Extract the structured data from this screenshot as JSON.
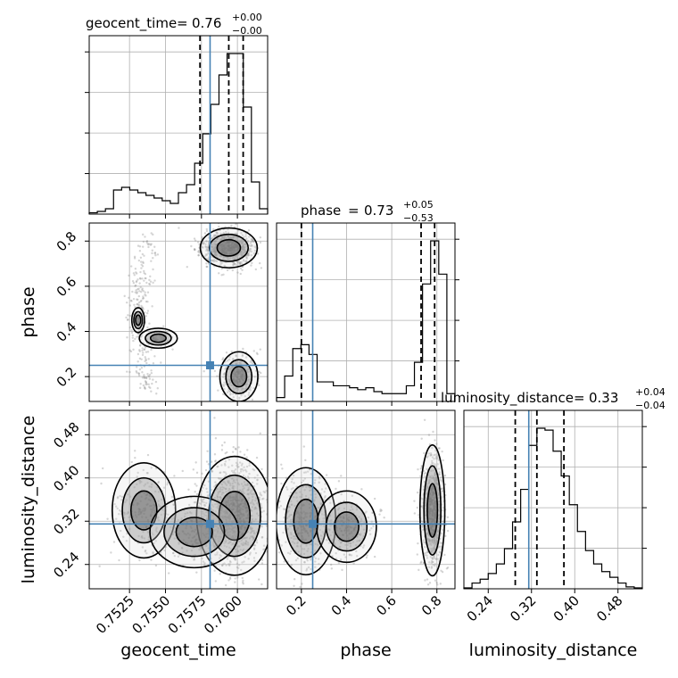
{
  "chart_data": {
    "type": "corner",
    "parameters": [
      "geocent_time",
      "phase",
      "luminosity_distance"
    ],
    "truths": {
      "geocent_time": 0.7581,
      "phase": 0.25,
      "luminosity_distance": 0.315
    },
    "titles": [
      {
        "name": "geocent_time",
        "value": "0.76",
        "plus": "+0.00",
        "minus": "−0.00"
      },
      {
        "name": "phase",
        "value": "0.73",
        "plus": "+0.05",
        "minus": "−0.53"
      },
      {
        "name": "luminosity_distance",
        "value": "0.33",
        "plus": "+0.04",
        "minus": "−0.04"
      }
    ],
    "ranges": {
      "geocent_time": [
        0.7497,
        0.7621
      ],
      "phase": [
        0.09,
        0.88
      ],
      "luminosity_distance": [
        0.195,
        0.525
      ]
    },
    "ticks": {
      "geocent_time": [
        "0.7525",
        "0.7550",
        "0.7575",
        "0.7600"
      ],
      "phase_y": [
        "0.2",
        "0.4",
        "0.6",
        "0.8"
      ],
      "phase_x": [
        "0.2",
        "0.4",
        "0.6",
        "0.8"
      ],
      "luminosity_distance_y": [
        "0.24",
        "0.32",
        "0.40",
        "0.48"
      ],
      "luminosity_distance_x": [
        "0.24",
        "0.32",
        "0.40",
        "0.48"
      ]
    },
    "histograms": {
      "geocent_time": {
        "quantiles": [
          0.7574,
          0.7594,
          0.7604
        ],
        "counts": [
          0.5,
          1,
          2,
          9,
          10,
          9,
          8,
          7,
          6,
          5,
          4,
          8,
          11,
          19,
          30,
          41,
          52,
          60,
          60,
          40,
          12,
          2
        ]
      },
      "phase": {
        "quantiles": [
          0.2,
          0.73,
          0.79
        ],
        "counts": [
          2,
          13,
          27,
          29,
          24,
          10,
          10,
          8,
          8,
          7,
          6,
          7,
          5,
          4,
          4,
          4,
          8,
          20,
          60,
          82,
          65,
          4
        ]
      },
      "luminosity_distance": {
        "quantiles": [
          0.29,
          0.33,
          0.38
        ],
        "counts": [
          0.5,
          3,
          5,
          8,
          13,
          21,
          35,
          52,
          75,
          84,
          83,
          72,
          59,
          44,
          30,
          20,
          13,
          9,
          6,
          3,
          1,
          0.5
        ]
      }
    },
    "axis_labels": {
      "x": [
        "geocent_time",
        "phase",
        "luminosity_distance"
      ],
      "y": [
        "phase",
        "luminosity_distance"
      ]
    },
    "grid": true
  }
}
